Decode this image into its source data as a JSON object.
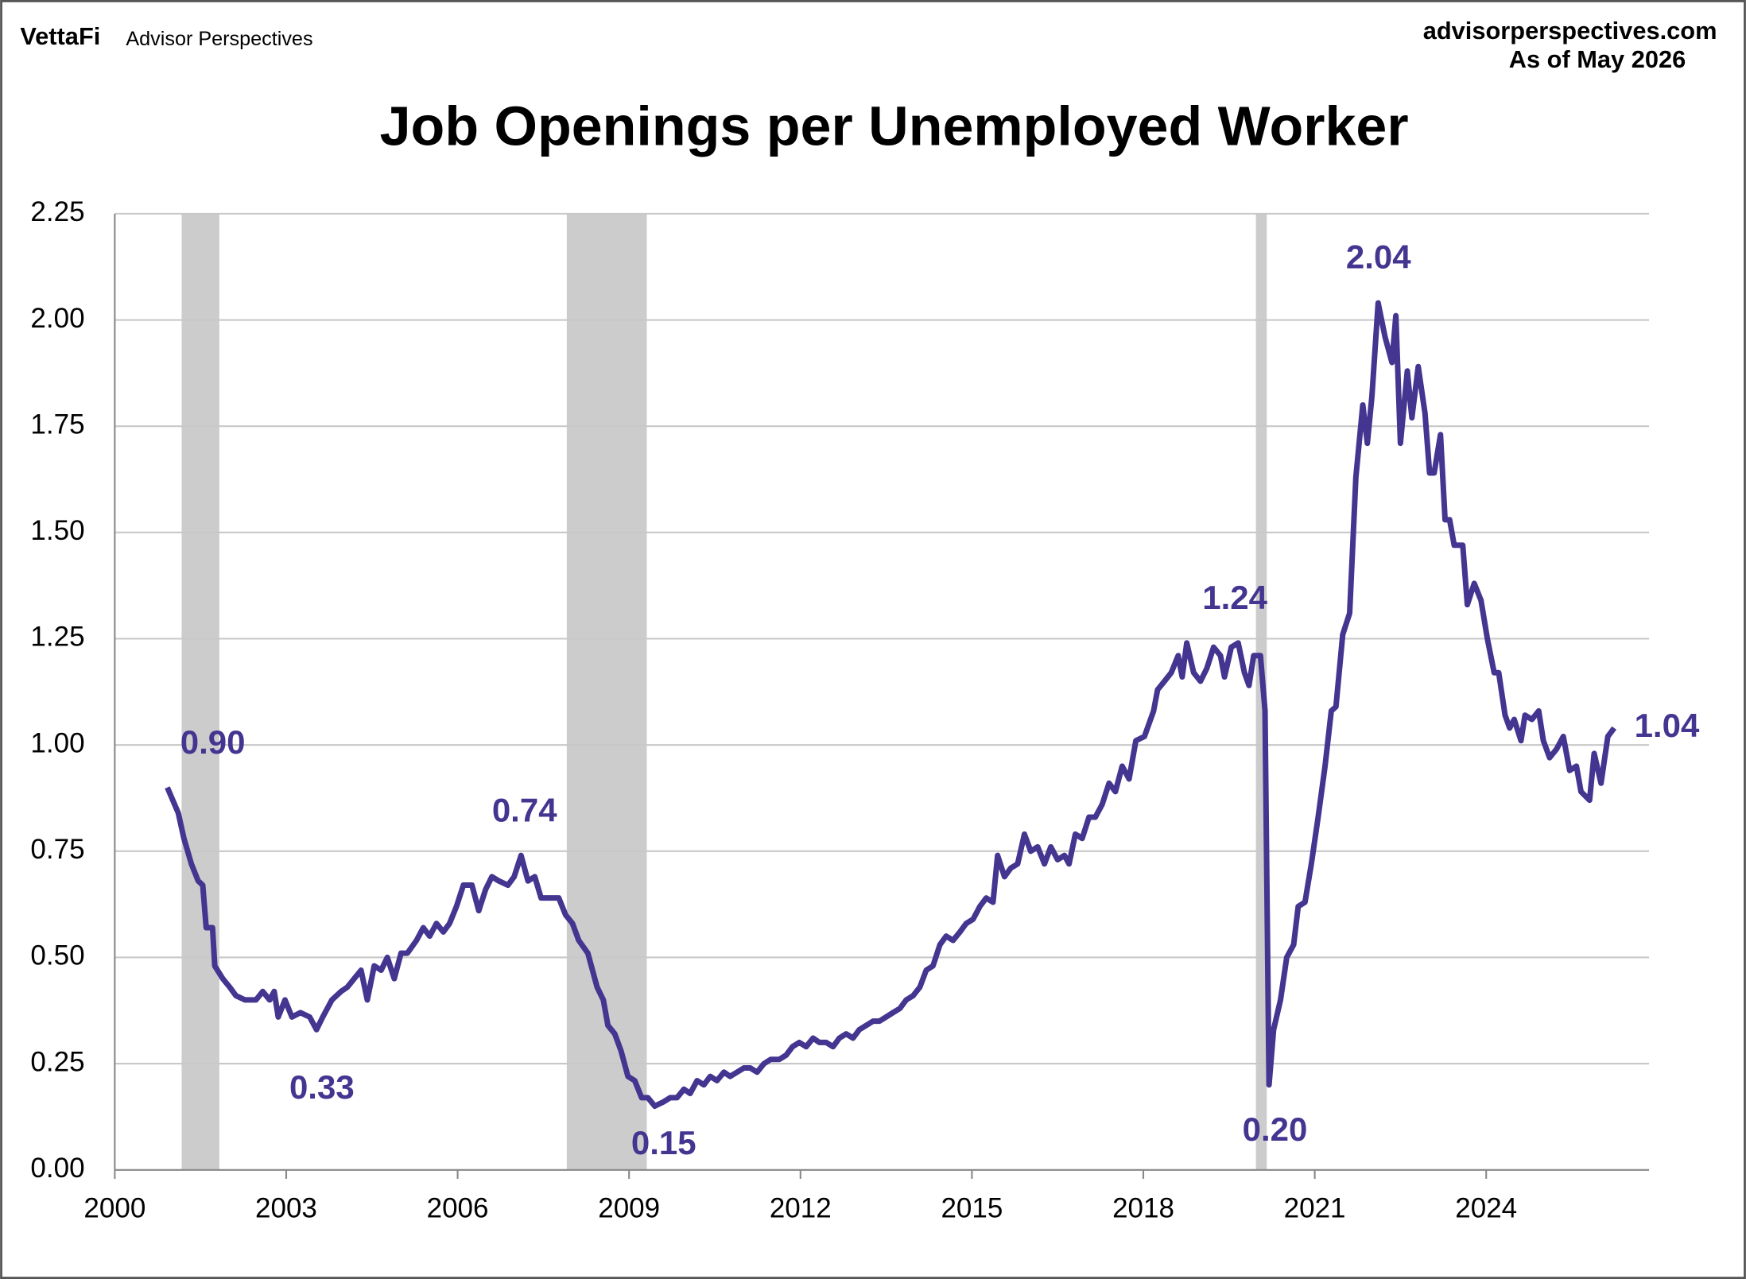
{
  "header": {
    "brand": "VettaFi",
    "product": "Advisor Perspectives",
    "site": "advisorperspectives.com",
    "date": "As of May 2026"
  },
  "chart_data": {
    "type": "line",
    "title": "Job Openings per Unemployed Worker",
    "color": "#433590",
    "recession_color": "#cccccc",
    "grid": true,
    "xlim": [
      2000,
      2026.85
    ],
    "xticks": [
      2000,
      2003,
      2006,
      2009,
      2012,
      2015,
      2018,
      2021,
      2024
    ],
    "ylim": [
      0,
      2.25
    ],
    "yticks": [
      {
        "value": 0,
        "label": "0.00"
      },
      0.25,
      {
        "value": 0.5,
        "label": "0.50"
      },
      0.75,
      {
        "value": 1,
        "label": "1.00"
      },
      1.25,
      {
        "value": 1.5,
        "label": "1.50"
      },
      1.75,
      {
        "value": 2,
        "label": "2.00"
      },
      2.25
    ],
    "recessions": [
      [
        2001.17,
        2001.83
      ],
      [
        2007.91,
        2009.31
      ],
      [
        2019.97,
        2020.16
      ]
    ],
    "annotations": [
      "0.90",
      "0.33",
      "0.74",
      "0.15",
      "1.24",
      "0.20",
      "2.04",
      "1.04"
    ],
    "x": [
      2000.92,
      2001.11,
      2001.21,
      2001.34,
      2001.46,
      2001.54,
      2001.6,
      2001.71,
      2001.75,
      2001.89,
      2002.01,
      2002.12,
      2002.28,
      2002.47,
      2002.59,
      2002.71,
      2002.79,
      2002.86,
      2002.98,
      2003.1,
      2003.25,
      2003.41,
      2003.53,
      2003.64,
      2003.8,
      2003.96,
      2004.07,
      2004.19,
      2004.31,
      2004.42,
      2004.54,
      2004.66,
      2004.77,
      2004.89,
      2005.01,
      2005.12,
      2005.28,
      2005.4,
      2005.51,
      2005.63,
      2005.75,
      2005.86,
      2005.98,
      2006.1,
      2006.25,
      2006.37,
      2006.49,
      2006.6,
      2006.72,
      2006.88,
      2006.99,
      2007.11,
      2007.23,
      2007.35,
      2007.46,
      2007.62,
      2007.77,
      2007.89,
      2008.01,
      2008.12,
      2008.28,
      2008.44,
      2008.55,
      2008.63,
      2008.75,
      2008.86,
      2008.98,
      2009.1,
      2009.22,
      2009.33,
      2009.45,
      2009.6,
      2009.72,
      2009.84,
      2009.96,
      2010.07,
      2010.19,
      2010.31,
      2010.42,
      2010.54,
      2010.66,
      2010.77,
      2010.89,
      2011.01,
      2011.12,
      2011.24,
      2011.36,
      2011.48,
      2011.63,
      2011.75,
      2011.86,
      2011.98,
      2012.1,
      2012.22,
      2012.33,
      2012.45,
      2012.57,
      2012.68,
      2012.8,
      2012.92,
      2013.03,
      2013.15,
      2013.27,
      2013.38,
      2013.5,
      2013.62,
      2013.74,
      2013.85,
      2013.97,
      2014.09,
      2014.2,
      2014.32,
      2014.44,
      2014.55,
      2014.67,
      2014.79,
      2014.9,
      2015.02,
      2015.14,
      2015.25,
      2015.37,
      2015.45,
      2015.57,
      2015.68,
      2015.8,
      2015.92,
      2016.03,
      2016.15,
      2016.27,
      2016.38,
      2016.5,
      2016.62,
      2016.7,
      2016.81,
      2016.93,
      2017.05,
      2017.16,
      2017.28,
      2017.4,
      2017.51,
      2017.63,
      2017.75,
      2017.87,
      2018.02,
      2018.18,
      2018.25,
      2018.37,
      2018.49,
      2018.61,
      2018.68,
      2018.76,
      2018.88,
      2019,
      2019.11,
      2019.23,
      2019.35,
      2019.42,
      2019.54,
      2019.66,
      2019.77,
      2019.85,
      2019.93,
      2020.05,
      2020.13,
      2020.2,
      2020.28,
      2020.4,
      2020.51,
      2020.63,
      2020.71,
      2020.83,
      2020.94,
      2021.06,
      2021.18,
      2021.29,
      2021.37,
      2021.49,
      2021.61,
      2021.72,
      2021.84,
      2021.92,
      2022,
      2022.11,
      2022.23,
      2022.35,
      2022.42,
      2022.5,
      2022.62,
      2022.7,
      2022.81,
      2022.93,
      2023.01,
      2023.09,
      2023.2,
      2023.28,
      2023.36,
      2023.44,
      2023.52,
      2023.59,
      2023.67,
      2023.79,
      2023.91,
      2024.02,
      2024.14,
      2024.22,
      2024.33,
      2024.41,
      2024.49,
      2024.61,
      2024.68,
      2024.8,
      2024.92,
      2025,
      2025.11,
      2025.23,
      2025.35,
      2025.46,
      2025.58,
      2025.66,
      2025.81,
      2025.89,
      2026.01,
      2026.13,
      2026.24
    ],
    "values": [
      0.9,
      0.84,
      0.78,
      0.72,
      0.68,
      0.67,
      0.57,
      0.57,
      0.48,
      0.45,
      0.43,
      0.41,
      0.4,
      0.4,
      0.42,
      0.4,
      0.42,
      0.36,
      0.4,
      0.36,
      0.37,
      0.36,
      0.33,
      0.36,
      0.4,
      0.42,
      0.43,
      0.45,
      0.47,
      0.4,
      0.48,
      0.47,
      0.5,
      0.45,
      0.51,
      0.51,
      0.54,
      0.57,
      0.55,
      0.58,
      0.56,
      0.58,
      0.62,
      0.67,
      0.67,
      0.61,
      0.66,
      0.69,
      0.68,
      0.67,
      0.69,
      0.74,
      0.68,
      0.69,
      0.64,
      0.64,
      0.64,
      0.6,
      0.58,
      0.54,
      0.51,
      0.43,
      0.4,
      0.34,
      0.32,
      0.28,
      0.22,
      0.21,
      0.17,
      0.17,
      0.15,
      0.16,
      0.17,
      0.17,
      0.19,
      0.18,
      0.21,
      0.2,
      0.22,
      0.21,
      0.23,
      0.22,
      0.23,
      0.24,
      0.24,
      0.23,
      0.25,
      0.26,
      0.26,
      0.27,
      0.29,
      0.3,
      0.29,
      0.31,
      0.3,
      0.3,
      0.29,
      0.31,
      0.32,
      0.31,
      0.33,
      0.34,
      0.35,
      0.35,
      0.36,
      0.37,
      0.38,
      0.4,
      0.41,
      0.43,
      0.47,
      0.48,
      0.53,
      0.55,
      0.54,
      0.56,
      0.58,
      0.59,
      0.62,
      0.64,
      0.63,
      0.74,
      0.69,
      0.71,
      0.72,
      0.79,
      0.75,
      0.76,
      0.72,
      0.76,
      0.73,
      0.74,
      0.72,
      0.79,
      0.78,
      0.83,
      0.83,
      0.86,
      0.91,
      0.89,
      0.95,
      0.92,
      1.01,
      1.02,
      1.08,
      1.13,
      1.15,
      1.17,
      1.21,
      1.16,
      1.24,
      1.17,
      1.15,
      1.18,
      1.23,
      1.21,
      1.16,
      1.23,
      1.24,
      1.17,
      1.14,
      1.21,
      1.21,
      1.08,
      0.2,
      0.33,
      0.4,
      0.5,
      0.53,
      0.62,
      0.63,
      0.72,
      0.83,
      0.95,
      1.08,
      1.09,
      1.26,
      1.31,
      1.63,
      1.8,
      1.71,
      1.82,
      2.04,
      1.96,
      1.9,
      2.01,
      1.71,
      1.88,
      1.77,
      1.89,
      1.78,
      1.64,
      1.64,
      1.73,
      1.53,
      1.53,
      1.47,
      1.47,
      1.47,
      1.33,
      1.38,
      1.34,
      1.25,
      1.17,
      1.17,
      1.07,
      1.04,
      1.06,
      1.01,
      1.07,
      1.06,
      1.08,
      1.01,
      0.97,
      0.99,
      1.02,
      0.94,
      0.95,
      0.89,
      0.87,
      0.98,
      0.91,
      1.02,
      1.04
    ]
  }
}
